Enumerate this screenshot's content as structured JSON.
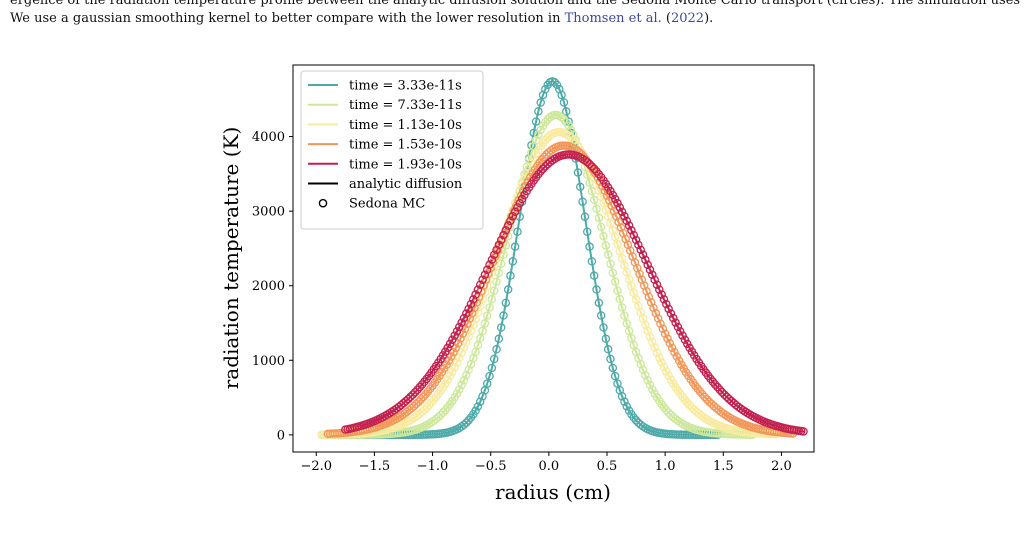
{
  "caption": {
    "line1": "ergence of the radiation temperature profile between the analytic diffusion solution and the Sedona Monte Carlo transport (circles). The simulation uses",
    "line2_pre": "We use a gaussian smoothing kernel to better compare with the lower resolution in ",
    "cite_name": "Thomsen et al.",
    "cite_open": " (",
    "cite_year": "2022",
    "cite_close": ")."
  },
  "chart_data": {
    "type": "line",
    "xlabel": "radius (cm)",
    "ylabel": "radiation temperature (K)",
    "xlim": [
      -2.2,
      2.28
    ],
    "ylim": [
      -230,
      4960
    ],
    "xticks": [
      -2.0,
      -1.5,
      -1.0,
      -0.5,
      0.0,
      0.5,
      1.0,
      1.5,
      2.0
    ],
    "xtick_labels": [
      "−2.0",
      "−1.5",
      "−1.0",
      "−0.5",
      "0.0",
      "0.5",
      "1.0",
      "1.5",
      "2.0"
    ],
    "yticks": [
      0,
      1000,
      2000,
      3000,
      4000
    ],
    "ytick_labels": [
      "0",
      "1000",
      "2000",
      "3000",
      "4000"
    ],
    "legend_position": "top-left",
    "series": [
      {
        "name": "time = 3.33e-11s",
        "color": "#4eaaa8",
        "peak": 4740,
        "center": 0.03,
        "sigma": 0.285,
        "range": [
          -1.95,
          1.45
        ]
      },
      {
        "name": "time = 7.33e-11s",
        "color": "#cde89b",
        "peak": 4290,
        "center": 0.06,
        "sigma": 0.42,
        "range": [
          -1.95,
          1.75
        ]
      },
      {
        "name": "time = 1.13e-10s",
        "color": "#f8ea9e",
        "peak": 4060,
        "center": 0.09,
        "sigma": 0.52,
        "range": [
          -1.95,
          1.95
        ]
      },
      {
        "name": "time = 1.53e-10s",
        "color": "#f39659",
        "peak": 3880,
        "center": 0.13,
        "sigma": 0.6,
        "range": [
          -1.9,
          2.1
        ]
      },
      {
        "name": "time = 1.93e-10s",
        "color": "#c2204f",
        "peak": 3760,
        "center": 0.17,
        "sigma": 0.68,
        "range": [
          -1.75,
          2.2
        ]
      }
    ],
    "legend_extra": [
      {
        "label": "analytic diffusion",
        "marker": "line",
        "color": "#000000"
      },
      {
        "label": "Sedona MC",
        "marker": "circle",
        "color": "#000000"
      }
    ]
  }
}
